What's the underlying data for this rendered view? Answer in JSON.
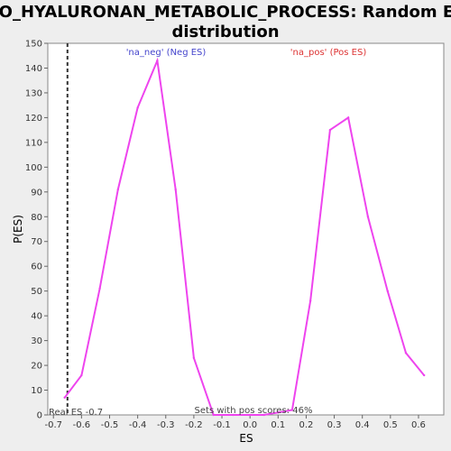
{
  "chart_data": {
    "type": "line",
    "title_line1": "GO_HYALURONAN_METABOLIC_PROCESS: Random ES",
    "title_line2": "distribution",
    "xlabel": "ES",
    "ylabel": "P(ES)",
    "xlim": [
      -0.72,
      0.69
    ],
    "ylim": [
      0,
      150
    ],
    "x_ticks": [
      "-0.7",
      "-0.6",
      "-0.5",
      "-0.4",
      "-0.3",
      "-0.2",
      "-0.1",
      "0.0",
      "0.1",
      "0.2",
      "0.3",
      "0.4",
      "0.5",
      "0.6"
    ],
    "y_ticks": [
      "0",
      "10",
      "20",
      "30",
      "40",
      "50",
      "60",
      "70",
      "80",
      "90",
      "100",
      "110",
      "120",
      "130",
      "140",
      "150"
    ],
    "series": [
      {
        "color": "#ee44ee",
        "x": [
          -0.66,
          -0.6,
          -0.535,
          -0.47,
          -0.4,
          -0.33,
          -0.265,
          -0.2,
          -0.13,
          -0.06,
          0.0,
          0.05,
          0.1,
          0.15,
          0.215,
          0.285,
          0.35,
          0.42,
          0.49,
          0.555,
          0.62
        ],
        "y": [
          7,
          16,
          51,
          91,
          124,
          143,
          91,
          23,
          0,
          0,
          0,
          0,
          1,
          2,
          46,
          115,
          120,
          80,
          50,
          25,
          16
        ]
      }
    ],
    "real_es": -0.65,
    "annotations": {
      "neg_label": "'na_neg' (Neg ES)",
      "pos_label": "'na_pos' (Pos ES)",
      "real_es_label": "Real ES -0.7",
      "pos_scores_label": "Sets with pos scores: 46%"
    },
    "colors": {
      "neg": "#4444cc",
      "pos": "#dd3333",
      "line": "#ee44ee",
      "marker": "#333333"
    }
  }
}
